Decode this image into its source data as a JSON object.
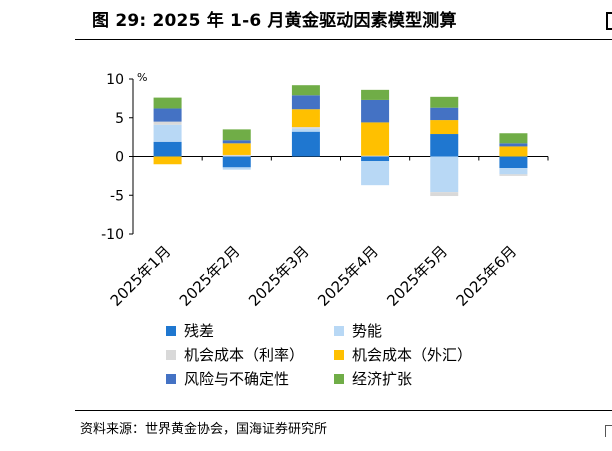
{
  "figure": {
    "title": "图 29:  2025 年 1-6 月黄金驱动因素模型测算",
    "source": "资料来源：世界黄金协会，国海证券研究所"
  },
  "chart_data": {
    "type": "bar",
    "stacked": true,
    "title": "",
    "ylabel": "",
    "yunit": "%",
    "ylim": [
      -10,
      10
    ],
    "yticks": [
      10,
      5,
      0,
      -5,
      -10
    ],
    "grid": false,
    "legend_position": "bottom",
    "categories": [
      "2025年1月",
      "2025年2月",
      "2025年3月",
      "2025年4月",
      "2025年5月",
      "2025年6月"
    ],
    "series": [
      {
        "name": "残差",
        "color": "#1f77d0",
        "values": [
          1.9,
          -1.4,
          3.2,
          -0.6,
          2.9,
          -1.5
        ]
      },
      {
        "name": "势能",
        "color": "#b8d8f5",
        "values": [
          2.2,
          -0.3,
          0.4,
          -3.1,
          -4.6,
          -0.8
        ]
      },
      {
        "name": "机会成本（利率）",
        "color": "#d9d9d9",
        "values": [
          0.4,
          0.2,
          0.2,
          0.1,
          -0.5,
          -0.2
        ]
      },
      {
        "name": "机会成本（外汇）",
        "color": "#ffc000",
        "values": [
          -1.0,
          1.5,
          2.3,
          4.3,
          1.8,
          1.3
        ]
      },
      {
        "name": "风险与不确定性",
        "color": "#4472c4",
        "values": [
          1.7,
          0.4,
          1.8,
          2.9,
          1.6,
          0.4
        ]
      },
      {
        "name": "经济扩张",
        "color": "#70ad47",
        "values": [
          1.4,
          1.4,
          1.3,
          1.3,
          1.4,
          1.3
        ]
      }
    ]
  }
}
